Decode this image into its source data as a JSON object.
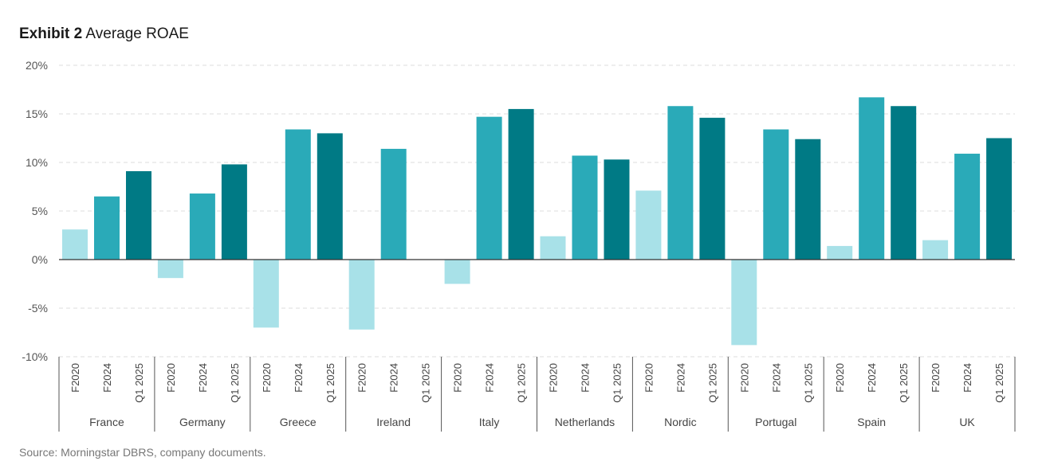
{
  "header": {
    "title_bold": "Exhibit 2",
    "title_rest": "Average ROAE"
  },
  "source": "Source: Morningstar DBRS, company documents.",
  "colors": {
    "F2020": "#a8e1e8",
    "F2024": "#2aaab8",
    "Q1 2025": "#007a85",
    "grid": "#dddddd",
    "axis": "#555555"
  },
  "chart_data": {
    "type": "bar",
    "title": "Average ROAE",
    "y_unit": "%",
    "ylim": [
      -10,
      20
    ],
    "yticks": [
      20,
      15,
      10,
      5,
      0,
      -5,
      -10
    ],
    "ytick_labels": [
      "20%",
      "15%",
      "10%",
      "5%",
      "0%",
      "-5%",
      "-10%"
    ],
    "grid": true,
    "groups": [
      "France",
      "Germany",
      "Greece",
      "Ireland",
      "Italy",
      "Netherlands",
      "Nordic",
      "Portugal",
      "Spain",
      "UK"
    ],
    "periods": [
      "F2020",
      "F2024",
      "Q1 2025"
    ],
    "series": [
      {
        "name": "F2020",
        "values": [
          3.1,
          -1.9,
          -7.0,
          -7.2,
          -2.5,
          2.4,
          7.1,
          -8.8,
          1.4,
          2.0
        ]
      },
      {
        "name": "F2024",
        "values": [
          6.5,
          6.8,
          13.4,
          11.4,
          14.7,
          10.7,
          15.8,
          13.4,
          16.7,
          10.9
        ]
      },
      {
        "name": "Q1 2025",
        "values": [
          9.1,
          9.8,
          13.0,
          null,
          15.5,
          10.3,
          14.6,
          12.4,
          15.8,
          12.5
        ]
      }
    ]
  }
}
